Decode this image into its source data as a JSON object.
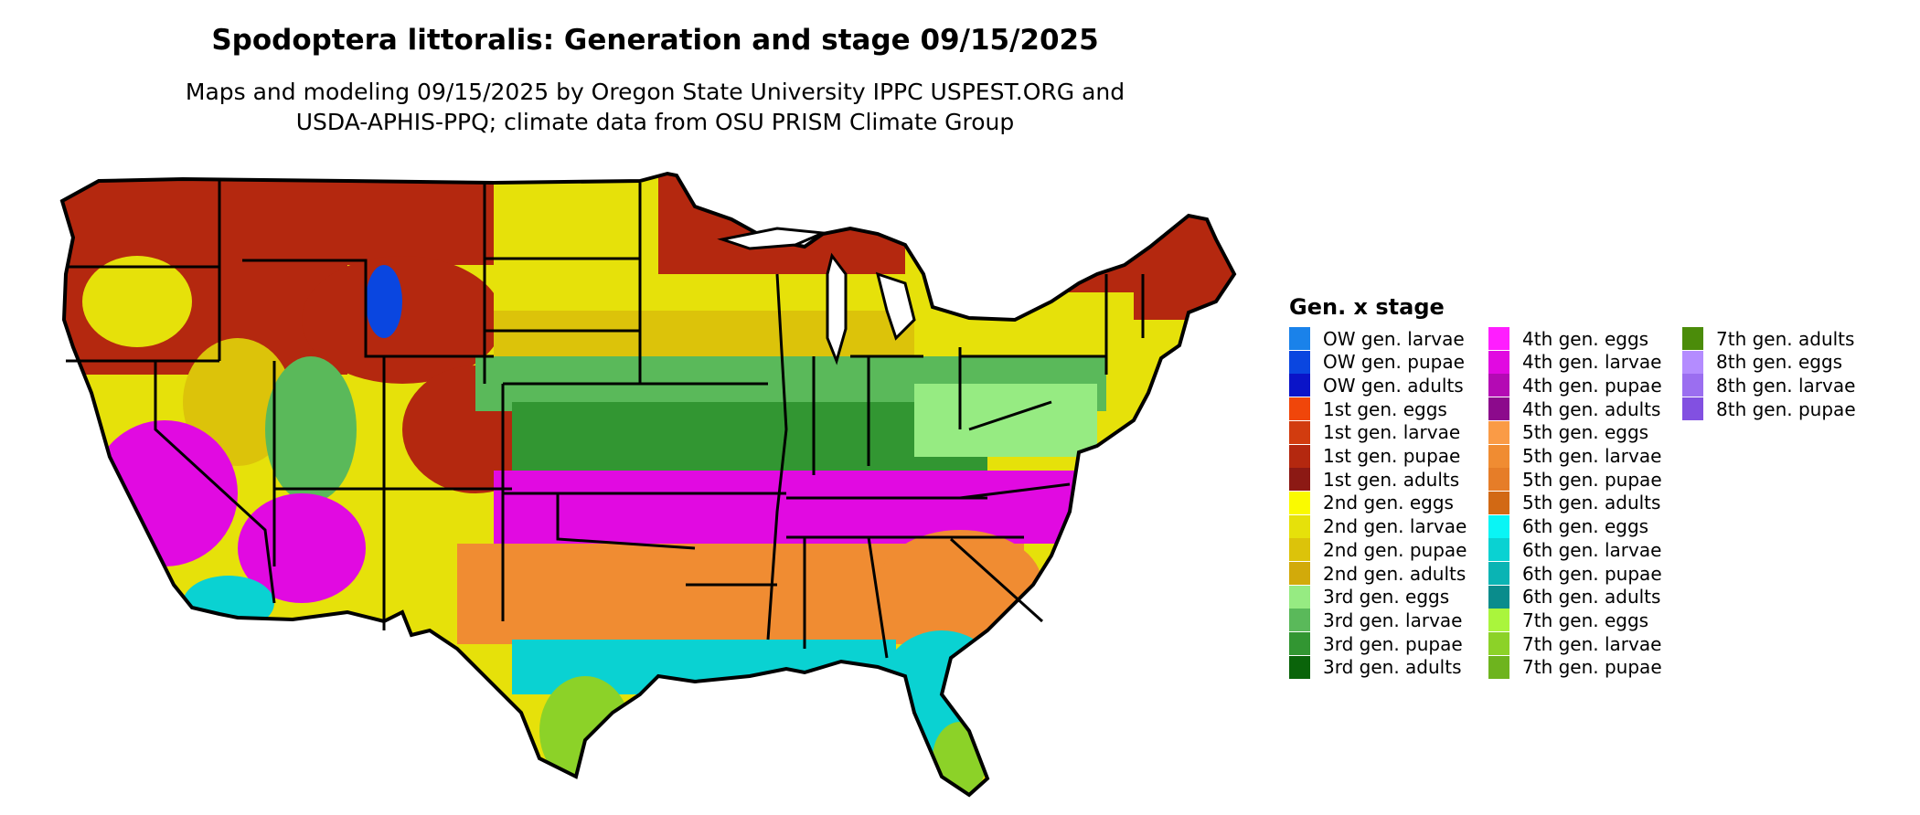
{
  "title": "Spodoptera littoralis: Generation and stage 09/15/2025",
  "subtitle_lines": [
    "Maps and modeling 09/15/2025 by Oregon State University IPPC USPEST.ORG and",
    "USDA-APHIS-PPQ; climate data from OSU PRISM Climate Group"
  ],
  "legend": {
    "title": "Gen. x stage",
    "items": [
      {
        "label": "OW gen. larvae",
        "color": "#1a82ea"
      },
      {
        "label": "OW gen. pupae",
        "color": "#0a46e0"
      },
      {
        "label": "OW gen. adults",
        "color": "#0a14c8"
      },
      {
        "label": "1st gen. eggs",
        "color": "#f0460a"
      },
      {
        "label": "1st gen. larvae",
        "color": "#d23c0f"
      },
      {
        "label": "1st gen. pupae",
        "color": "#b4280f"
      },
      {
        "label": "1st gen. adults",
        "color": "#8c1914"
      },
      {
        "label": "2nd gen. eggs",
        "color": "#fafa00"
      },
      {
        "label": "2nd gen. larvae",
        "color": "#e6e10a"
      },
      {
        "label": "2nd gen. pupae",
        "color": "#dcc30a"
      },
      {
        "label": "2nd gen. adults",
        "color": "#d2aa0a"
      },
      {
        "label": "3rd gen. eggs",
        "color": "#96eb82"
      },
      {
        "label": "3rd gen. larvae",
        "color": "#5ab95a"
      },
      {
        "label": "3rd gen. pupae",
        "color": "#329632"
      },
      {
        "label": "3rd gen. adults",
        "color": "#0a640a"
      },
      {
        "label": "4th gen. eggs",
        "color": "#ff1eff"
      },
      {
        "label": "4th gen. larvae",
        "color": "#e10ae1"
      },
      {
        "label": "4th gen. pupae",
        "color": "#b40ab4"
      },
      {
        "label": "4th gen. adults",
        "color": "#8c0a8c"
      },
      {
        "label": "5th gen. eggs",
        "color": "#fa9b46"
      },
      {
        "label": "5th gen. larvae",
        "color": "#f08c32"
      },
      {
        "label": "5th gen. pupae",
        "color": "#e67d28"
      },
      {
        "label": "5th gen. adults",
        "color": "#d26914"
      },
      {
        "label": "6th gen. eggs",
        "color": "#0af5f5"
      },
      {
        "label": "6th gen. larvae",
        "color": "#0ad2d2"
      },
      {
        "label": "6th gen. pupae",
        "color": "#0ab4b4"
      },
      {
        "label": "6th gen. adults",
        "color": "#0a8c8c"
      },
      {
        "label": "7th gen. eggs",
        "color": "#aaf53c"
      },
      {
        "label": "7th gen. larvae",
        "color": "#8cd228"
      },
      {
        "label": "7th gen. pupae",
        "color": "#6eb41e"
      },
      {
        "label": "7th gen. adults",
        "color": "#4b8c0a"
      },
      {
        "label": "8th gen. eggs",
        "color": "#b48cff"
      },
      {
        "label": "8th gen. larvae",
        "color": "#9b6ef0"
      },
      {
        "label": "8th gen. pupae",
        "color": "#8250e1"
      }
    ]
  }
}
